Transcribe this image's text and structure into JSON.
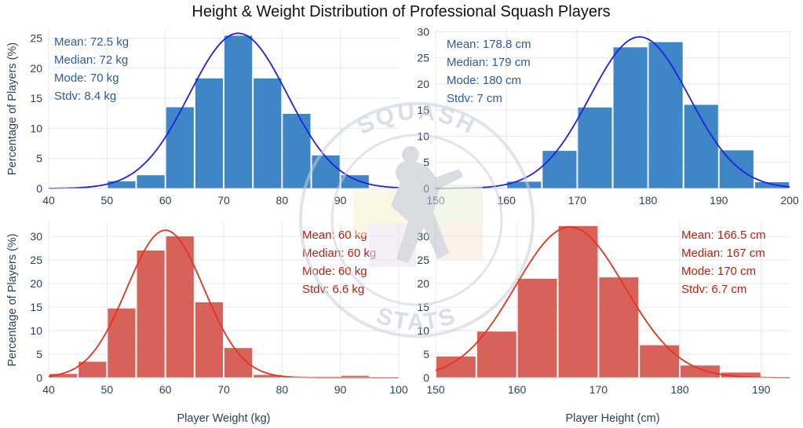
{
  "figure_title": "Height & Weight Distribution of Professional Squash Players",
  "watermark": {
    "top_text": "SQUASH",
    "bottom_text": "STATS"
  },
  "colors": {
    "men_bar": "#3f86c6",
    "men_curve": "#1f1fe6",
    "men_text": "#2d5aa0",
    "women_bar": "#d6625a",
    "women_curve": "#e8321e",
    "women_text": "#c21d0e",
    "axis_text": "#2a3f5f",
    "grid": "#e4e7ee"
  },
  "chart_data": [
    {
      "id": "men_weight",
      "type": "bar",
      "xlim": [
        40,
        100
      ],
      "ylim": [
        0,
        26.5
      ],
      "xticks": [
        40,
        50,
        60,
        70,
        80,
        90
      ],
      "yticks": [
        0,
        5,
        10,
        15,
        20,
        25
      ],
      "xlabel": "",
      "ylabel": "Percentage of Players (%)",
      "bin_width": 5,
      "bin_starts": [
        50,
        55,
        60,
        65,
        70,
        75,
        80,
        85,
        90
      ],
      "values": [
        1.2,
        2.2,
        13.5,
        18.3,
        25.4,
        18.3,
        12.4,
        5.5,
        2.2
      ],
      "curve": {
        "mean": 72.5,
        "sd": 8.4,
        "peak": 25.8
      },
      "stats": [
        "Mean: 72.5 kg",
        "Median: 72 kg",
        "Mode: 70 kg",
        "Stdv: 8.4 kg"
      ],
      "stats_position": "top-left"
    },
    {
      "id": "men_height",
      "type": "bar",
      "xlim": [
        150,
        200
      ],
      "ylim": [
        0,
        30.5
      ],
      "xticks": [
        150,
        160,
        170,
        180,
        190,
        200
      ],
      "yticks": [
        0,
        5,
        10,
        15,
        20,
        25,
        30
      ],
      "xlabel": "",
      "ylabel": "",
      "bin_width": 5,
      "bin_starts": [
        155,
        160,
        165,
        170,
        175,
        180,
        185,
        190,
        195
      ],
      "values": [
        0.1,
        1.3,
        7.2,
        15.5,
        27.0,
        28.0,
        16.0,
        7.3,
        1.2
      ],
      "curve": {
        "mean": 178.8,
        "sd": 7.0,
        "peak": 29.0
      },
      "stats": [
        "Mean: 178.8 cm",
        "Median: 179 cm",
        "Mode: 180  cm",
        "Stdv: 7 cm"
      ],
      "stats_position": "top-left"
    },
    {
      "id": "women_weight",
      "type": "bar",
      "xlim": [
        40,
        100
      ],
      "ylim": [
        0,
        33
      ],
      "xticks": [
        40,
        50,
        60,
        70,
        80,
        90,
        100
      ],
      "yticks": [
        0,
        5,
        10,
        15,
        20,
        25,
        30
      ],
      "xlabel": "Player Weight (kg)",
      "ylabel": "Percentage of Players (%)",
      "bin_width": 5,
      "bin_starts": [
        40,
        45,
        50,
        55,
        60,
        65,
        70,
        75,
        80,
        85,
        90
      ],
      "values": [
        0.8,
        3.4,
        14.7,
        27.0,
        30.0,
        16.0,
        6.3,
        0.6,
        0.2,
        0.2,
        0.4
      ],
      "curve": {
        "mean": 60,
        "sd": 6.6,
        "peak": 31.3
      },
      "stats": [
        "Mean: 60 kg",
        "Median: 60 kg",
        "Mode: 60 kg",
        "Stdv: 6.6 kg"
      ],
      "stats_position": "top-right"
    },
    {
      "id": "women_height",
      "type": "bar",
      "xlim": [
        150,
        193.5
      ],
      "ylim": [
        0,
        33
      ],
      "xticks": [
        150,
        160,
        170,
        180,
        190
      ],
      "yticks": [
        0,
        5,
        10,
        15,
        20,
        25,
        30
      ],
      "xlabel": "Player Height (cm)",
      "ylabel": "",
      "bin_width": 5,
      "bin_starts": [
        150,
        155,
        160,
        165,
        170,
        175,
        180,
        185
      ],
      "values": [
        4.5,
        9.8,
        21.0,
        32.2,
        21.3,
        6.9,
        2.6,
        1.1
      ],
      "curve": {
        "mean": 166.5,
        "sd": 6.7,
        "peak": 32.0
      },
      "stats": [
        "Mean: 166.5 cm",
        "Median: 167 cm",
        "Mode: 170  cm",
        "Stdv: 6.7 cm"
      ],
      "stats_position": "top-right"
    }
  ]
}
